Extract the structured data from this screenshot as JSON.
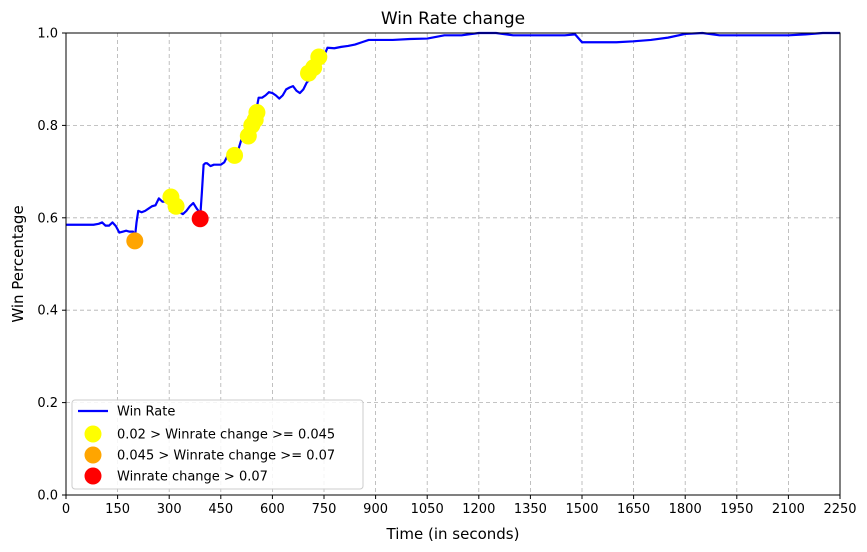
{
  "chart_data": {
    "type": "line",
    "title": "Win Rate change",
    "xlabel": "Time (in seconds)",
    "ylabel": "Win Percentage",
    "xlim": [
      0,
      2250
    ],
    "ylim": [
      0,
      1
    ],
    "xticks": [
      0,
      150,
      300,
      450,
      600,
      750,
      900,
      1050,
      1200,
      1350,
      1500,
      1650,
      1800,
      1950,
      2100,
      2250
    ],
    "yticks": [
      0.0,
      0.2,
      0.4,
      0.6,
      0.8,
      1.0
    ],
    "ytick_labels": [
      "0.0",
      "0.2",
      "0.4",
      "0.6",
      "0.8",
      "1.0"
    ],
    "grid": true,
    "legend_position": "lower-left",
    "colors": {
      "line": "#0000ff",
      "yellow": "#ffff00",
      "orange": "#ffa500",
      "red": "#ff0000",
      "grid": "#b0b0b0"
    },
    "series": [
      {
        "name": "Win Rate",
        "kind": "line",
        "x": [
          0,
          30,
          60,
          80,
          95,
          105,
          115,
          125,
          135,
          145,
          155,
          165,
          175,
          185,
          195,
          200,
          205,
          210,
          220,
          230,
          240,
          250,
          260,
          270,
          280,
          290,
          300,
          310,
          320,
          330,
          340,
          350,
          360,
          370,
          380,
          385,
          390,
          395,
          400,
          405,
          410,
          420,
          430,
          440,
          450,
          460,
          470,
          480,
          490,
          500,
          510,
          520,
          530,
          540,
          550,
          560,
          570,
          580,
          590,
          600,
          610,
          620,
          630,
          640,
          650,
          660,
          670,
          680,
          690,
          700,
          710,
          720,
          730,
          740,
          750,
          760,
          780,
          800,
          820,
          840,
          860,
          880,
          900,
          950,
          1000,
          1050,
          1100,
          1150,
          1200,
          1250,
          1300,
          1350,
          1400,
          1450,
          1480,
          1500,
          1550,
          1600,
          1650,
          1700,
          1750,
          1800,
          1850,
          1900,
          1950,
          2000,
          2050,
          2100,
          2150,
          2200,
          2250
        ],
        "y": [
          0.585,
          0.585,
          0.585,
          0.585,
          0.587,
          0.59,
          0.583,
          0.583,
          0.59,
          0.582,
          0.568,
          0.57,
          0.572,
          0.57,
          0.57,
          0.555,
          0.59,
          0.615,
          0.612,
          0.615,
          0.62,
          0.625,
          0.627,
          0.642,
          0.635,
          0.635,
          0.637,
          0.645,
          0.62,
          0.612,
          0.608,
          0.615,
          0.625,
          0.632,
          0.62,
          0.615,
          0.6,
          0.655,
          0.715,
          0.718,
          0.718,
          0.712,
          0.715,
          0.715,
          0.715,
          0.72,
          0.735,
          0.74,
          0.738,
          0.745,
          0.77,
          0.772,
          0.775,
          0.79,
          0.82,
          0.86,
          0.86,
          0.865,
          0.872,
          0.87,
          0.865,
          0.858,
          0.865,
          0.878,
          0.882,
          0.885,
          0.875,
          0.87,
          0.878,
          0.893,
          0.9,
          0.915,
          0.93,
          0.945,
          0.95,
          0.968,
          0.967,
          0.97,
          0.972,
          0.975,
          0.98,
          0.985,
          0.985,
          0.985,
          0.987,
          0.988,
          0.995,
          0.995,
          1.0,
          1.0,
          0.995,
          0.995,
          0.995,
          0.995,
          0.997,
          0.98,
          0.98,
          0.98,
          0.982,
          0.985,
          0.99,
          0.998,
          1.0,
          0.995,
          0.995,
          0.995,
          0.995,
          0.995,
          0.997,
          1.0,
          1.0
        ]
      },
      {
        "name": " 0.02 > Winrate change >= 0.045",
        "kind": "scatter",
        "x": [
          305,
          320,
          490,
          530,
          540,
          550,
          555,
          705,
          720,
          735
        ],
        "y": [
          0.645,
          0.625,
          0.735,
          0.777,
          0.8,
          0.812,
          0.828,
          0.913,
          0.925,
          0.948
        ]
      },
      {
        "name": "0.045 > Winrate change >= 0.07",
        "kind": "scatter",
        "x": [
          200
        ],
        "y": [
          0.55
        ]
      },
      {
        "name": "Winrate change > 0.07",
        "kind": "scatter",
        "x": [
          390
        ],
        "y": [
          0.598
        ]
      }
    ]
  }
}
